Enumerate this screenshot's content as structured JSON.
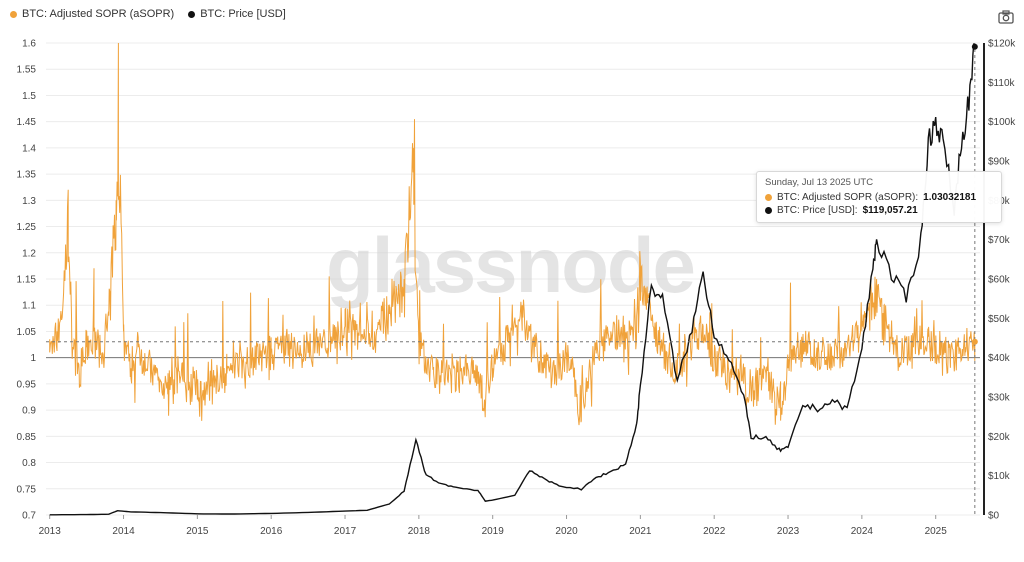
{
  "legend": {
    "asopr_label": "BTC: Adjusted SOPR (aSOPR)",
    "price_label": "BTC: Price [USD]"
  },
  "colors": {
    "asopr": "#f0a23a",
    "price": "#111111",
    "grid": "#ececec",
    "baseline": "#777777"
  },
  "watermark": "glassnode",
  "icons": {
    "camera": "camera-icon"
  },
  "tooltip": {
    "date": "Sunday, Jul 13 2025 UTC",
    "asopr_label": "BTC: Adjusted SOPR (aSOPR):",
    "asopr_value": "1.03032181",
    "price_label": "BTC: Price [USD]:",
    "price_value": "$119,057.21"
  },
  "chart_data": {
    "type": "line",
    "title": "",
    "x_ticks": [
      "2013",
      "2014",
      "2015",
      "2016",
      "2017",
      "2018",
      "2019",
      "2020",
      "2021",
      "2022",
      "2023",
      "2024",
      "2025"
    ],
    "left_axis": {
      "ticks": [
        "1.6",
        "1.55",
        "1.5",
        "1.45",
        "1.4",
        "1.35",
        "1.3",
        "1.25",
        "1.2",
        "1.15",
        "1.1",
        "1.05",
        "1",
        "0.95",
        "0.9",
        "0.85",
        "0.8",
        "0.75",
        "0.7"
      ],
      "ylim": [
        0.7,
        1.6
      ]
    },
    "right_axis": {
      "ticks": [
        "$120k",
        "$110k",
        "$100k",
        "$90k",
        "$80k",
        "$70k",
        "$60k",
        "$50k",
        "$40k",
        "$30k",
        "$20k",
        "$10k",
        "$0"
      ],
      "ylim": [
        0,
        120000
      ]
    },
    "reference_line": 1.0,
    "series": [
      {
        "name": "BTC: Adjusted SOPR (aSOPR)",
        "axis": "left",
        "x": [
          2013.0,
          2013.1,
          2013.2,
          2013.25,
          2013.3,
          2013.4,
          2013.5,
          2013.6,
          2013.7,
          2013.8,
          2013.9,
          2013.93,
          2014.0,
          2014.1,
          2014.2,
          2014.4,
          2014.6,
          2014.8,
          2015.0,
          2015.2,
          2015.4,
          2015.6,
          2015.8,
          2016.0,
          2016.2,
          2016.4,
          2016.6,
          2016.8,
          2017.0,
          2017.2,
          2017.4,
          2017.6,
          2017.8,
          2017.93,
          2018.0,
          2018.2,
          2018.4,
          2018.6,
          2018.8,
          2018.9,
          2019.0,
          2019.2,
          2019.4,
          2019.5,
          2019.7,
          2019.9,
          2020.0,
          2020.2,
          2020.4,
          2020.6,
          2020.8,
          2020.95,
          2021.0,
          2021.1,
          2021.3,
          2021.5,
          2021.7,
          2021.85,
          2022.0,
          2022.2,
          2022.4,
          2022.5,
          2022.7,
          2022.9,
          2023.0,
          2023.2,
          2023.4,
          2023.6,
          2023.8,
          2024.0,
          2024.2,
          2024.3,
          2024.5,
          2024.7,
          2024.9,
          2025.0,
          2025.2,
          2025.4,
          2025.53
        ],
        "y": [
          1.01,
          1.05,
          1.15,
          1.32,
          1.03,
          0.97,
          1.02,
          1.05,
          1.0,
          1.08,
          1.3,
          1.6,
          1.05,
          0.98,
          1.02,
          0.97,
          0.93,
          0.96,
          0.92,
          0.95,
          0.97,
          0.99,
          1.0,
          1.01,
          1.02,
          1.01,
          1.03,
          1.04,
          1.06,
          1.08,
          1.05,
          1.1,
          1.15,
          1.4,
          1.02,
          0.97,
          0.96,
          0.97,
          0.95,
          0.9,
          0.98,
          1.03,
          1.1,
          1.05,
          0.98,
          0.96,
          1.01,
          0.88,
          1.03,
          1.05,
          1.04,
          1.08,
          1.18,
          1.12,
          1.02,
          0.97,
          1.05,
          1.06,
          1.0,
          0.97,
          0.95,
          0.93,
          0.97,
          0.88,
          0.98,
          1.03,
          1.01,
          1.0,
          1.02,
          1.07,
          1.15,
          1.1,
          1.0,
          1.02,
          1.04,
          1.03,
          1.0,
          1.02,
          1.03032181
        ]
      },
      {
        "name": "BTC: Price [USD]",
        "axis": "right",
        "x": [
          2013.0,
          2013.5,
          2013.8,
          2013.92,
          2014.1,
          2014.5,
          2015.0,
          2015.5,
          2016.0,
          2016.5,
          2017.0,
          2017.3,
          2017.6,
          2017.8,
          2017.96,
          2018.1,
          2018.3,
          2018.5,
          2018.8,
          2018.9,
          2019.0,
          2019.3,
          2019.5,
          2019.7,
          2019.9,
          2020.2,
          2020.4,
          2020.6,
          2020.8,
          2020.95,
          2021.0,
          2021.15,
          2021.3,
          2021.5,
          2021.7,
          2021.85,
          2022.0,
          2022.2,
          2022.4,
          2022.5,
          2022.7,
          2022.88,
          2023.0,
          2023.2,
          2023.4,
          2023.6,
          2023.8,
          2024.0,
          2024.15,
          2024.2,
          2024.4,
          2024.6,
          2024.8,
          2024.9,
          2025.0,
          2025.1,
          2025.25,
          2025.35,
          2025.45,
          2025.53
        ],
        "y": [
          50,
          100,
          200,
          1100,
          800,
          600,
          300,
          250,
          400,
          650,
          1000,
          1200,
          2800,
          6000,
          19000,
          10000,
          8000,
          7000,
          6300,
          3500,
          3800,
          5000,
          11500,
          9000,
          7500,
          6500,
          9500,
          11000,
          13000,
          23000,
          33000,
          58000,
          55000,
          34000,
          47000,
          62000,
          46000,
          40000,
          30000,
          20000,
          19500,
          16500,
          17000,
          28000,
          27000,
          29000,
          27000,
          42000,
          63000,
          70000,
          61000,
          55000,
          70000,
          95000,
          100000,
          95000,
          78000,
          95000,
          105000,
          119057.21
        ]
      }
    ]
  }
}
